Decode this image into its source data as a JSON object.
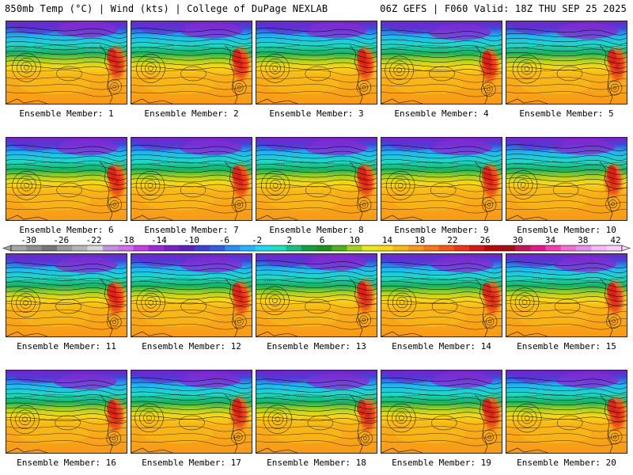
{
  "header": {
    "title_left": "850mb Temp (°C) | Wind (kts) | College of DuPage NEXLAB",
    "title_right": "06Z GEFS | F060 Valid: 18Z THU SEP 25 2025"
  },
  "members": [
    {
      "label": "Ensemble Member: 1"
    },
    {
      "label": "Ensemble Member: 2"
    },
    {
      "label": "Ensemble Member: 3"
    },
    {
      "label": "Ensemble Member: 4"
    },
    {
      "label": "Ensemble Member: 5"
    },
    {
      "label": "Ensemble Member: 6"
    },
    {
      "label": "Ensemble Member: 7"
    },
    {
      "label": "Ensemble Member: 8"
    },
    {
      "label": "Ensemble Member: 9"
    },
    {
      "label": "Ensemble Member: 10"
    },
    {
      "label": "Ensemble Member: 11"
    },
    {
      "label": "Ensemble Member: 12"
    },
    {
      "label": "Ensemble Member: 13"
    },
    {
      "label": "Ensemble Member: 14"
    },
    {
      "label": "Ensemble Member: 15"
    },
    {
      "label": "Ensemble Member: 16"
    },
    {
      "label": "Ensemble Member: 17"
    },
    {
      "label": "Ensemble Member: 18"
    },
    {
      "label": "Ensemble Member: 19"
    },
    {
      "label": "Ensemble Member: 20"
    }
  ],
  "colorbar": {
    "tick_labels": [
      "-30",
      "-26",
      "-22",
      "-18",
      "-14",
      "-10",
      "-6",
      "-2",
      "2",
      "6",
      "10",
      "14",
      "18",
      "22",
      "26",
      "30",
      "34",
      "38",
      "42"
    ],
    "colors": [
      "#a6a6a6",
      "#8e8e8e",
      "#777777",
      "#9a9a9a",
      "#b6b6b6",
      "#d8d8d8",
      "#c490e0",
      "#d070e8",
      "#c040e0",
      "#9a28d6",
      "#7a20c8",
      "#5a22b8",
      "#4040d0",
      "#2f5fe0",
      "#2f8cf0",
      "#28b4f8",
      "#20d8f0",
      "#20e0c0",
      "#18c080",
      "#10a040",
      "#1e9020",
      "#50b020",
      "#a8d020",
      "#e8e820",
      "#f8d818",
      "#f8b818",
      "#f89818",
      "#f87818",
      "#f05818",
      "#e83818",
      "#d81818",
      "#b80808",
      "#a01010",
      "#c01850",
      "#e01888",
      "#f040b0",
      "#f070d0",
      "#e890e8",
      "#f8b8f8",
      "#f8d0f8"
    ]
  }
}
